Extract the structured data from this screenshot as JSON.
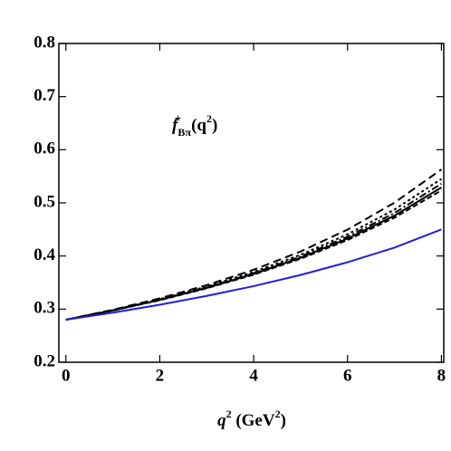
{
  "chart_data": {
    "type": "line",
    "annotation": [
      "f",
      "Bπ",
      "+",
      " (q",
      "2",
      ")"
    ],
    "x_label": [
      "q",
      "2",
      "  (GeV",
      "2",
      ")"
    ],
    "x": [
      0,
      1,
      2,
      3,
      4,
      5,
      6,
      7,
      8
    ],
    "series": [
      {
        "color": "#000000",
        "dash": "9,5",
        "values": [
          0.28,
          0.2988,
          0.3203,
          0.3451,
          0.3741,
          0.4084,
          0.4497,
          0.5003,
          0.563
        ]
      },
      {
        "color": "#000000",
        "dash": "3,3",
        "values": [
          0.28,
          0.2981,
          0.3188,
          0.3425,
          0.37,
          0.4023,
          0.4408,
          0.4874,
          0.545
        ]
      },
      {
        "color": "#000000",
        "dash": "8,3,2,3",
        "values": [
          0.28,
          0.2978,
          0.318,
          0.3411,
          0.3678,
          0.3991,
          0.4363,
          0.481,
          0.536
        ]
      },
      {
        "color": "#000000",
        "dash": "none",
        "values": [
          0.28,
          0.2975,
          0.3173,
          0.34,
          0.3662,
          0.3967,
          0.4327,
          0.476,
          0.529
        ]
      },
      {
        "color": "#000000",
        "dash": "6,3",
        "values": [
          0.28,
          0.2973,
          0.3168,
          0.3392,
          0.3649,
          0.3948,
          0.43,
          0.4722,
          0.5234
        ]
      },
      {
        "color": "#1f1fe0",
        "dash": "none",
        "values": [
          0.28,
          0.2934,
          0.3083,
          0.3248,
          0.3433,
          0.3643,
          0.3882,
          0.4158,
          0.45
        ]
      }
    ],
    "xlim": [
      -0.15,
      8.05
    ],
    "ylim": [
      0.2,
      0.8
    ],
    "xticks": [
      0,
      2,
      4,
      6,
      8
    ],
    "yticks": [
      0.2,
      0.3,
      0.4,
      0.5,
      0.6,
      0.7,
      0.8
    ]
  }
}
